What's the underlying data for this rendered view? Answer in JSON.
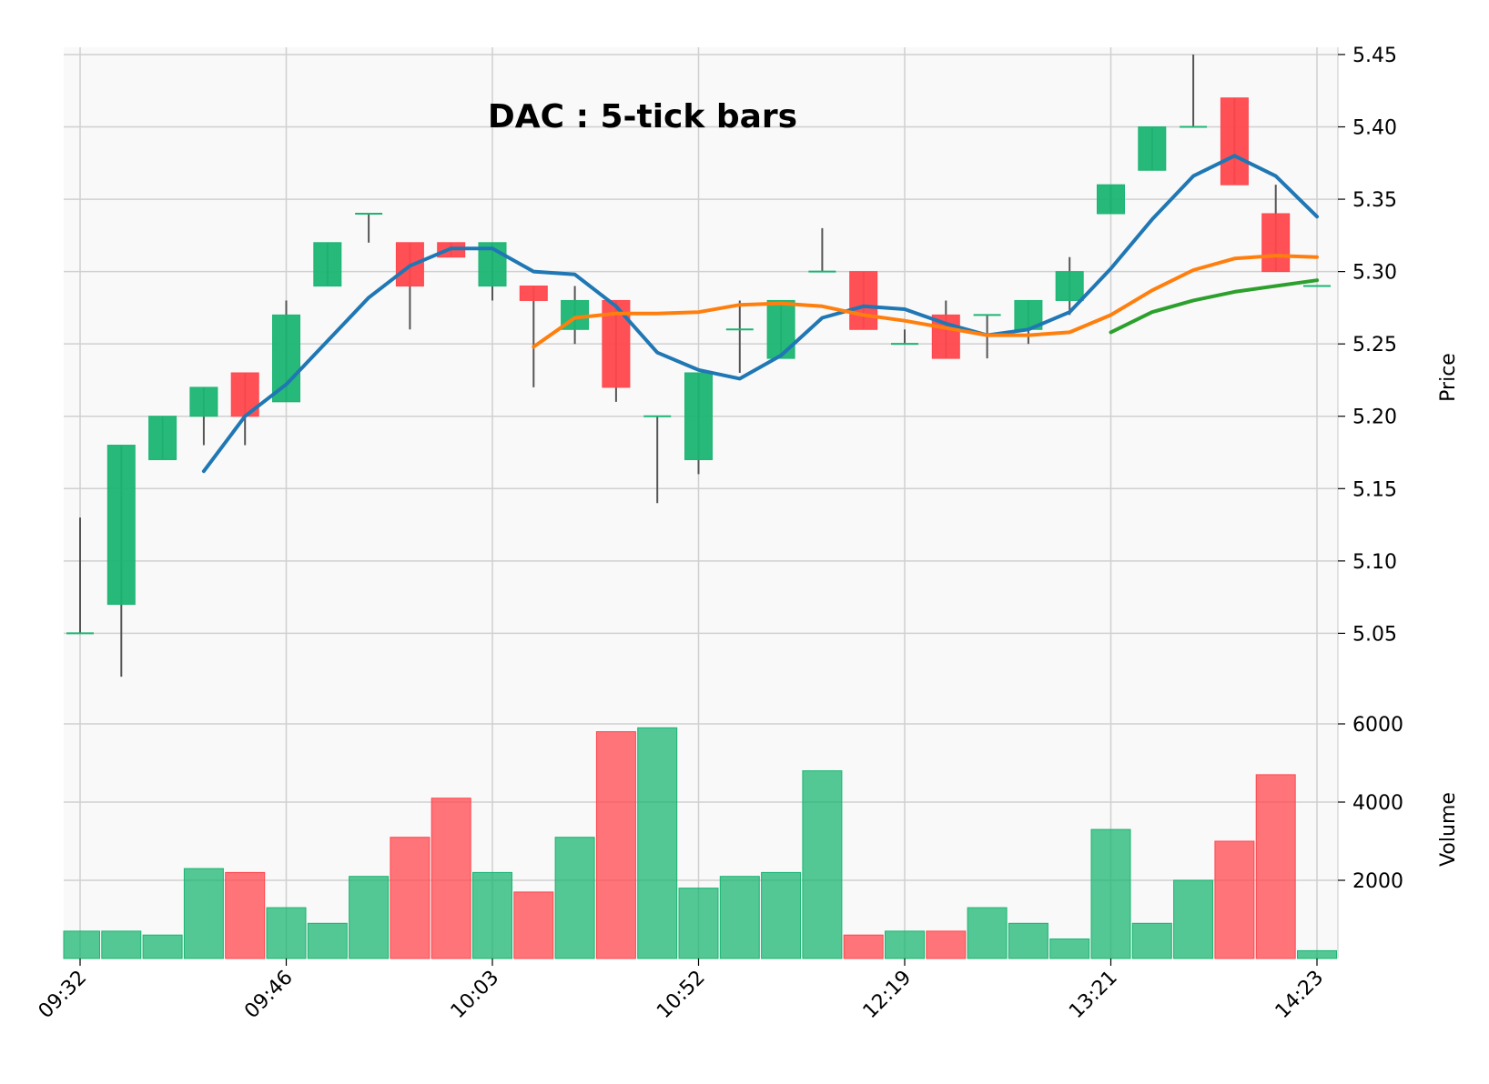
{
  "chart_data": {
    "type": "candlestick",
    "title": "DAC : 5-tick bars",
    "price_ylabel": "Price",
    "volume_ylabel": "Volume",
    "x_tick_labels": [
      "09:32",
      "09:46",
      "10:03",
      "10:52",
      "12:19",
      "13:21",
      "14:23"
    ],
    "x_tick_indices": [
      0,
      5,
      10,
      15,
      20,
      25,
      30
    ],
    "price_ylim": [
      5.005,
      5.455
    ],
    "price_yticks": [
      "5.05",
      "5.10",
      "5.15",
      "5.20",
      "5.25",
      "5.30",
      "5.35",
      "5.40",
      "5.45"
    ],
    "volume_ylim": [
      0,
      6000
    ],
    "volume_yticks": [
      "2000",
      "4000",
      "6000"
    ],
    "grid": true,
    "colors": {
      "up": "#1bb572",
      "down": "#ff474d",
      "ma1": "#1f77b4",
      "ma2": "#ff7f0e",
      "ma3": "#2ca02c",
      "wick": "#555555"
    },
    "bars": [
      {
        "open": 5.05,
        "high": 5.13,
        "low": 5.05,
        "close": 5.05,
        "volume": 700
      },
      {
        "open": 5.07,
        "high": 5.18,
        "low": 5.02,
        "close": 5.18,
        "volume": 700
      },
      {
        "open": 5.17,
        "high": 5.2,
        "low": 5.17,
        "close": 5.2,
        "volume": 600
      },
      {
        "open": 5.2,
        "high": 5.22,
        "low": 5.18,
        "close": 5.22,
        "volume": 2300
      },
      {
        "open": 5.23,
        "high": 5.23,
        "low": 5.18,
        "close": 5.2,
        "volume": 2200
      },
      {
        "open": 5.21,
        "high": 5.28,
        "low": 5.21,
        "close": 5.27,
        "volume": 1300
      },
      {
        "open": 5.29,
        "high": 5.32,
        "low": 5.29,
        "close": 5.32,
        "volume": 900
      },
      {
        "open": 5.34,
        "high": 5.34,
        "low": 5.32,
        "close": 5.34,
        "volume": 2100
      },
      {
        "open": 5.32,
        "high": 5.32,
        "low": 5.26,
        "close": 5.29,
        "volume": 3100
      },
      {
        "open": 5.32,
        "high": 5.32,
        "low": 5.31,
        "close": 5.31,
        "volume": 4100
      },
      {
        "open": 5.29,
        "high": 5.32,
        "low": 5.28,
        "close": 5.32,
        "volume": 2200
      },
      {
        "open": 5.29,
        "high": 5.29,
        "low": 5.22,
        "close": 5.28,
        "volume": 1700
      },
      {
        "open": 5.26,
        "high": 5.29,
        "low": 5.25,
        "close": 5.28,
        "volume": 3100
      },
      {
        "open": 5.28,
        "high": 5.28,
        "low": 5.21,
        "close": 5.22,
        "volume": 5800
      },
      {
        "open": 5.2,
        "high": 5.2,
        "low": 5.14,
        "close": 5.2,
        "volume": 5900
      },
      {
        "open": 5.17,
        "high": 5.23,
        "low": 5.16,
        "close": 5.23,
        "volume": 1800
      },
      {
        "open": 5.26,
        "high": 5.28,
        "low": 5.23,
        "close": 5.26,
        "volume": 2100
      },
      {
        "open": 5.24,
        "high": 5.28,
        "low": 5.24,
        "close": 5.28,
        "volume": 2200
      },
      {
        "open": 5.3,
        "high": 5.33,
        "low": 5.3,
        "close": 5.3,
        "volume": 4800
      },
      {
        "open": 5.3,
        "high": 5.3,
        "low": 5.26,
        "close": 5.26,
        "volume": 600
      },
      {
        "open": 5.25,
        "high": 5.26,
        "low": 5.25,
        "close": 5.25,
        "volume": 700
      },
      {
        "open": 5.27,
        "high": 5.28,
        "low": 5.24,
        "close": 5.24,
        "volume": 700
      },
      {
        "open": 5.27,
        "high": 5.27,
        "low": 5.24,
        "close": 5.27,
        "volume": 1300
      },
      {
        "open": 5.26,
        "high": 5.28,
        "low": 5.25,
        "close": 5.28,
        "volume": 900
      },
      {
        "open": 5.28,
        "high": 5.31,
        "low": 5.27,
        "close": 5.3,
        "volume": 500
      },
      {
        "open": 5.34,
        "high": 5.36,
        "low": 5.34,
        "close": 5.36,
        "volume": 3300
      },
      {
        "open": 5.37,
        "high": 5.4,
        "low": 5.37,
        "close": 5.4,
        "volume": 900
      },
      {
        "open": 5.4,
        "high": 5.45,
        "low": 5.4,
        "close": 5.4,
        "volume": 2000
      },
      {
        "open": 5.42,
        "high": 5.42,
        "low": 5.36,
        "close": 5.36,
        "volume": 3000
      },
      {
        "open": 5.34,
        "high": 5.36,
        "low": 5.3,
        "close": 5.3,
        "volume": 4700
      },
      {
        "open": 5.29,
        "high": 5.29,
        "low": 5.29,
        "close": 5.29,
        "volume": 200
      }
    ],
    "moving_averages": [
      {
        "color_key": "ma1",
        "start": 3,
        "values": [
          5.162,
          5.2,
          5.222,
          5.252,
          5.282,
          5.304,
          5.316,
          5.316,
          5.3,
          5.298,
          5.276,
          5.244,
          5.232,
          5.226,
          5.242,
          5.268,
          5.276,
          5.274,
          5.264,
          5.256,
          5.26,
          5.272,
          5.302,
          5.336,
          5.366,
          5.38,
          5.366,
          5.338
        ]
      },
      {
        "color_key": "ma2",
        "start": 11,
        "values": [
          5.248,
          5.268,
          5.271,
          5.271,
          5.272,
          5.277,
          5.278,
          5.276,
          5.27,
          5.266,
          5.261,
          5.256,
          5.256,
          5.258,
          5.27,
          5.287,
          5.301,
          5.309,
          5.311,
          5.31
        ]
      },
      {
        "color_key": "ma3",
        "start": 25,
        "values": [
          5.258,
          5.272,
          5.28,
          5.286,
          5.29,
          5.294
        ]
      }
    ]
  }
}
